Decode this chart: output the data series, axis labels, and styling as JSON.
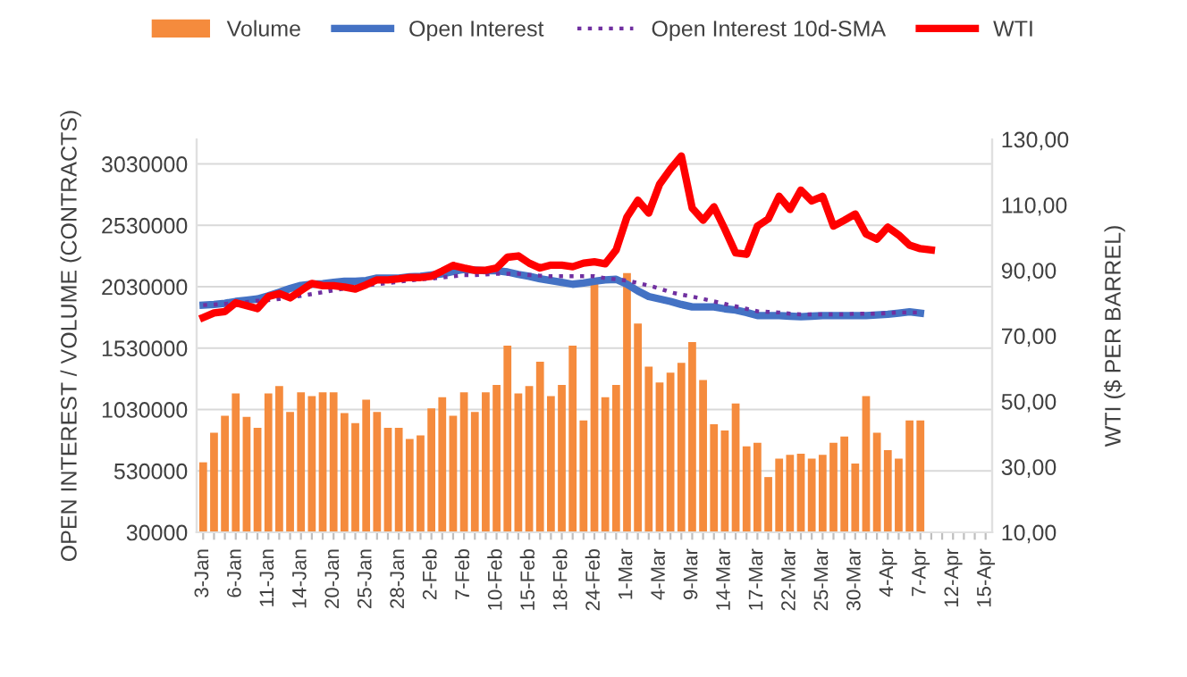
{
  "chart_data": {
    "type": "bar",
    "ylabel": "OPEN INTEREST / VOLUME (CONTRACTS)",
    "y2label": "WTI ($ PER BARREL)",
    "categories": [
      "3-Jan",
      null,
      null,
      "6-Jan",
      null,
      null,
      "11-Jan",
      null,
      null,
      "14-Jan",
      null,
      null,
      "20-Jan",
      null,
      null,
      "25-Jan",
      null,
      null,
      "28-Jan",
      null,
      null,
      "2-Feb",
      null,
      null,
      "7-Feb",
      null,
      null,
      "10-Feb",
      null,
      null,
      "15-Feb",
      null,
      null,
      "18-Feb",
      null,
      null,
      "24-Feb",
      null,
      null,
      "1-Mar",
      null,
      null,
      "4-Mar",
      null,
      null,
      "9-Mar",
      null,
      null,
      "14-Mar",
      null,
      null,
      "17-Mar",
      null,
      null,
      "22-Mar",
      null,
      null,
      "25-Mar",
      null,
      null,
      "30-Mar",
      null,
      null,
      "4-Apr",
      null,
      null,
      "7-Apr",
      null,
      null,
      "12-Apr",
      null,
      null,
      "15-Apr"
    ],
    "series": [
      {
        "name": "Volume",
        "color": "#f58b3d",
        "values": [
          600000,
          840000,
          980000,
          1160000,
          970000,
          880000,
          1160000,
          1220000,
          1010000,
          1170000,
          1140000,
          1170000,
          1170000,
          1000000,
          920000,
          1110000,
          1010000,
          880000,
          880000,
          790000,
          820000,
          1040000,
          1130000,
          980000,
          1170000,
          1010000,
          1170000,
          1230000,
          1550000,
          1160000,
          1220000,
          1420000,
          1140000,
          1230000,
          1550000,
          940000,
          2070000,
          1130000,
          1230000,
          2140000,
          1730000,
          1380000,
          1250000,
          1330000,
          1410000,
          1580000,
          1270000,
          910000,
          860000,
          1080000,
          730000,
          760000,
          480000,
          630000,
          660000,
          670000,
          630000,
          660000,
          760000,
          810000,
          590000,
          1140000,
          840000,
          700000,
          630000,
          940000,
          940000,
          null,
          null,
          null,
          null,
          null,
          null
        ]
      },
      {
        "name": "Open Interest",
        "type": "line",
        "color": "#4472c4",
        "line_style": "solid",
        "values": [
          1880000,
          1885000,
          1895000,
          1910000,
          1920000,
          1930000,
          1955000,
          1985000,
          2015000,
          2040000,
          2050000,
          2055000,
          2065000,
          2075000,
          2075000,
          2080000,
          2100000,
          2100000,
          2100000,
          2110000,
          2115000,
          2125000,
          2135000,
          2155000,
          2170000,
          2165000,
          2160000,
          2160000,
          2150000,
          2130000,
          2115000,
          2095000,
          2080000,
          2065000,
          2050000,
          2060000,
          2075000,
          2085000,
          2090000,
          2050000,
          1995000,
          1950000,
          1930000,
          1910000,
          1885000,
          1865000,
          1865000,
          1865000,
          1850000,
          1840000,
          1820000,
          1795000,
          1795000,
          1795000,
          1790000,
          1785000,
          1790000,
          1795000,
          1795000,
          1795000,
          1795000,
          1795000,
          1800000,
          1805000,
          1815000,
          1825000,
          1815000,
          null,
          null,
          null,
          null,
          null,
          null
        ]
      },
      {
        "name": "Open Interest 10d-SMA",
        "type": "line",
        "color": "#7030a0",
        "line_style": "dotted",
        "values": [
          1880000,
          1885000,
          1890000,
          1895000,
          1905000,
          1915000,
          1920000,
          1930000,
          1945000,
          1955000,
          1970000,
          1985000,
          2000000,
          2015000,
          2025000,
          2040000,
          2050000,
          2060000,
          2070000,
          2080000,
          2090000,
          2095000,
          2105000,
          2115000,
          2125000,
          2125000,
          2130000,
          2135000,
          2135000,
          2135000,
          2125000,
          2120000,
          2115000,
          2115000,
          2115000,
          2115000,
          2115000,
          2100000,
          2090000,
          2080000,
          2060000,
          2040000,
          2015000,
          1985000,
          1965000,
          1950000,
          1930000,
          1910000,
          1890000,
          1870000,
          1850000,
          1830000,
          1825000,
          1820000,
          1810000,
          1805000,
          1805000,
          1805000,
          1805000,
          1805000,
          1810000,
          1810000,
          1810000,
          1815000,
          1820000,
          1820000,
          1820000,
          null,
          null,
          null,
          null,
          null,
          null
        ]
      },
      {
        "name": "WTI",
        "type": "line",
        "color": "#ff0000",
        "line_style": "solid",
        "axis": "y2",
        "values": [
          75.6,
          77.0,
          77.4,
          80.1,
          79.2,
          78.3,
          82.0,
          82.9,
          81.6,
          83.8,
          86.0,
          85.3,
          85.3,
          84.9,
          84.3,
          85.6,
          87.1,
          87.1,
          87.4,
          87.8,
          87.8,
          88.2,
          89.8,
          91.5,
          90.7,
          90.0,
          90.0,
          90.7,
          94.0,
          94.4,
          92.2,
          90.7,
          91.6,
          91.6,
          91.1,
          92.2,
          92.6,
          92.0,
          96.2,
          106.3,
          111.4,
          107.5,
          116.3,
          120.9,
          124.9,
          109.0,
          105.3,
          109.4,
          102.6,
          95.3,
          94.9,
          103.5,
          105.7,
          112.6,
          108.6,
          114.5,
          111.2,
          112.6,
          103.5,
          105.3,
          107.2,
          101.1,
          99.5,
          103.2,
          100.8,
          97.7,
          96.6,
          96.2,
          null,
          null,
          null,
          null,
          null
        ]
      }
    ],
    "ylim": [
      30000,
      3230000
    ],
    "yticks": [
      30000,
      530000,
      1030000,
      1530000,
      2030000,
      2530000,
      3030000
    ],
    "y2lim": [
      10,
      130
    ],
    "y2ticks": [
      {
        "value": 10,
        "label": "10,00"
      },
      {
        "value": 30,
        "label": "30,00"
      },
      {
        "value": 50,
        "label": "50,00"
      },
      {
        "value": 70,
        "label": "70,00"
      },
      {
        "value": 90,
        "label": "90,00"
      },
      {
        "value": 110,
        "label": "110,00"
      },
      {
        "value": 130,
        "label": "130,00"
      }
    ],
    "grid": "y",
    "legend": "top",
    "marker": "none"
  }
}
